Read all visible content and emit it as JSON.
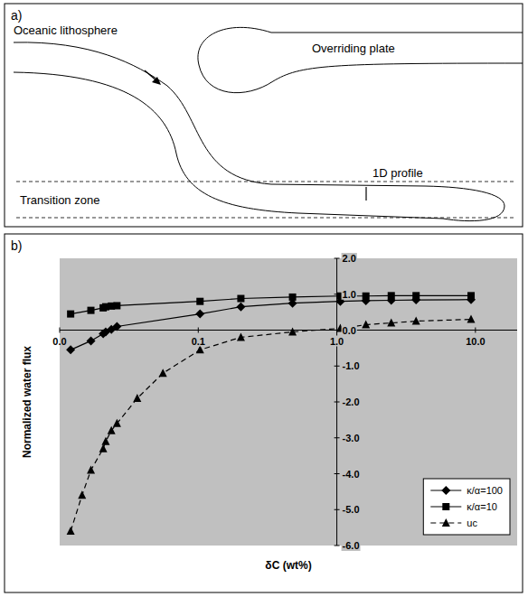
{
  "diagram": {
    "letter": "a)",
    "labels": [
      "Oceanic lithosphere",
      "Overriding plate",
      "Transition zone",
      "1D profile"
    ]
  },
  "chart_data": {
    "type": "line",
    "title": "b)",
    "x_label": "δC (wt%)",
    "y_label": "Normalized water flux",
    "log": "x",
    "grid": false,
    "legend": "lower right",
    "xlim": [
      0.01,
      20
    ],
    "xticks": [
      {
        "value": 0.01,
        "label": "0.0"
      },
      {
        "value": 0.1,
        "label": "0.1"
      },
      {
        "value": 1,
        "label": "1.0"
      },
      {
        "value": 10,
        "label": "10.0"
      }
    ],
    "ylim": [
      -6,
      2
    ],
    "yticks": [
      {
        "value": 2,
        "label": "2.0"
      },
      {
        "value": 1,
        "label": "1.0"
      },
      {
        "value": 0,
        "label": "0.0"
      },
      {
        "value": -1,
        "label": "-1.0"
      },
      {
        "value": -2,
        "label": "-2.0"
      },
      {
        "value": -3,
        "label": "-3.0"
      },
      {
        "value": -4,
        "label": "-4.0"
      },
      {
        "value": -5,
        "label": "-5.0"
      },
      {
        "value": -6,
        "label": "-6.0"
      }
    ],
    "series": [
      {
        "name": "κ/α=100",
        "color": "#000000",
        "marker": "diamond",
        "line_style": "solid",
        "x": [
          0.012,
          0.0168,
          0.0206,
          0.0215,
          0.0236,
          0.0259,
          0.103,
          0.203,
          0.479,
          1.06,
          1.62,
          2.47,
          3.73,
          9.3
        ],
        "values": [
          -0.55,
          -0.3,
          -0.1,
          -0.05,
          0.02,
          0.1,
          0.45,
          0.65,
          0.75,
          0.8,
          0.82,
          0.83,
          0.84,
          0.85
        ]
      },
      {
        "name": "κ/α=10",
        "color": "#000000",
        "marker": "square",
        "line_style": "solid",
        "x": [
          0.012,
          0.0168,
          0.0206,
          0.0215,
          0.0236,
          0.0259,
          0.103,
          0.203,
          0.479,
          1.06,
          1.62,
          2.47,
          3.73,
          9.3
        ],
        "values": [
          0.45,
          0.55,
          0.62,
          0.65,
          0.67,
          0.68,
          0.8,
          0.88,
          0.92,
          0.95,
          0.95,
          0.96,
          0.96,
          0.96
        ]
      },
      {
        "name": "uc",
        "color": "#000000",
        "marker": "triangle",
        "line_style": "dashed",
        "x": [
          0.012,
          0.0145,
          0.0168,
          0.0206,
          0.0215,
          0.0236,
          0.0259,
          0.0363,
          0.0556,
          0.103,
          0.203,
          0.479,
          1.06,
          1.62,
          2.47,
          3.73,
          9.3
        ],
        "values": [
          -5.6,
          -4.6,
          -3.9,
          -3.3,
          -3.1,
          -2.8,
          -2.6,
          -1.9,
          -1.2,
          -0.55,
          -0.2,
          -0.05,
          0.05,
          0.15,
          0.2,
          0.25,
          0.3
        ]
      }
    ]
  }
}
